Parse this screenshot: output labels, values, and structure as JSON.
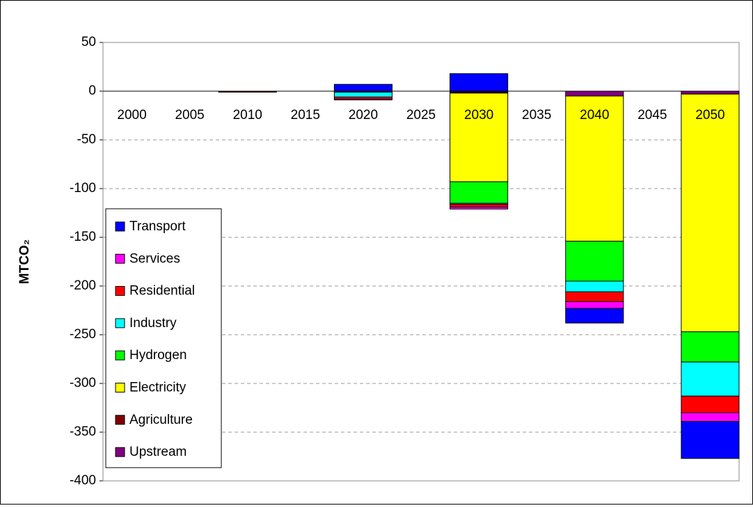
{
  "chart_data": {
    "type": "stacked_bar",
    "y_label": "MTCO₂",
    "categories": [
      "2000",
      "2005",
      "2010",
      "2015",
      "2020",
      "2025",
      "2030",
      "2035",
      "2040",
      "2045",
      "2050"
    ],
    "series": [
      {
        "name": "Upstream",
        "color": "#800080",
        "values": [
          0,
          0,
          0,
          0,
          0,
          0,
          -1,
          0,
          -5,
          0,
          -3
        ]
      },
      {
        "name": "Agriculture",
        "color": "#800000",
        "values": [
          0,
          0,
          -1,
          0,
          -1,
          0,
          -1,
          0,
          0,
          0,
          0
        ]
      },
      {
        "name": "Electricity",
        "color": "#ffff00",
        "values": [
          0,
          0,
          0,
          0,
          0,
          0,
          -91,
          0,
          -149,
          0,
          -244
        ]
      },
      {
        "name": "Hydrogen",
        "color": "#00ff00",
        "values": [
          0,
          0,
          0,
          0,
          0,
          0,
          -22,
          0,
          -41,
          0,
          -31
        ]
      },
      {
        "name": "Industry",
        "color": "#00ffff",
        "values": [
          0,
          0,
          0,
          0,
          -5,
          0,
          -1,
          0,
          -11,
          0,
          -35
        ]
      },
      {
        "name": "Residential",
        "color": "#ff0000",
        "values": [
          0,
          0,
          0,
          0,
          -2,
          0,
          -3,
          0,
          -10,
          0,
          -17
        ]
      },
      {
        "name": "Services",
        "color": "#ff00ff",
        "values": [
          0,
          0,
          0,
          0,
          -1,
          0,
          -2,
          0,
          -7,
          0,
          -9
        ]
      },
      {
        "name": "Transport",
        "color": "#0000ff",
        "values": [
          0,
          0,
          0,
          0,
          7,
          0,
          18,
          0,
          -15,
          0,
          -38
        ]
      }
    ],
    "ylim": [
      -400,
      50
    ],
    "yticks": [
      -400,
      -350,
      -300,
      -250,
      -200,
      -150,
      -100,
      -50,
      0,
      50
    ],
    "grid": true
  }
}
